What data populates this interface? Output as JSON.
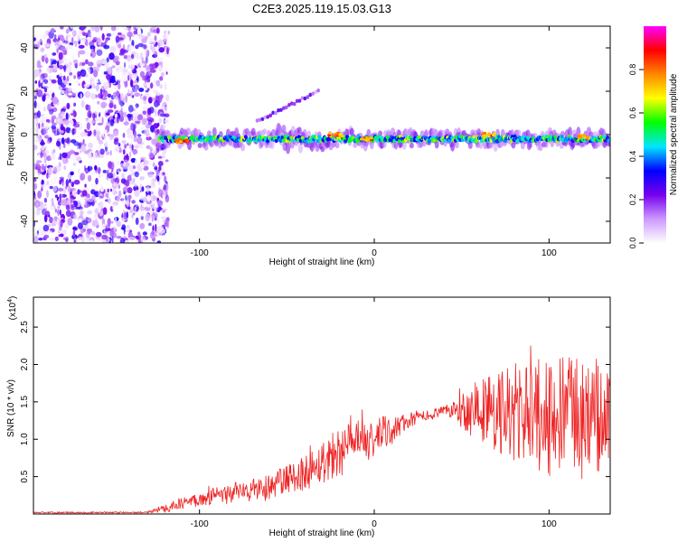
{
  "title": "C2E3.2025.119.15.03.G13",
  "chart_data": [
    {
      "type": "heatmap",
      "name": "spectrogram",
      "xlabel": "Height of straight line (km)",
      "ylabel": "Frequency (Hz)",
      "xlim": [
        -195,
        135
      ],
      "ylim": [
        -50,
        50
      ],
      "xticks": [
        -100,
        0,
        100
      ],
      "yticks": [
        -40,
        -20,
        0,
        20,
        40
      ],
      "colorbar": {
        "label": "Normalized spectral amplitude",
        "range": [
          0.0,
          1.0
        ],
        "ticks": [
          0.0,
          0.2,
          0.4,
          0.6,
          0.8
        ],
        "tick_labels": [
          "0.0",
          "0.2",
          "0.4",
          "0.6",
          "0.8"
        ],
        "colormap": [
          "#ffffff",
          "#cc99ff",
          "#7700ee",
          "#0000ff",
          "#00e5ff",
          "#00ff00",
          "#ffff00",
          "#ff8800",
          "#ff0000",
          "#ff00ff"
        ]
      },
      "noise_region_x": [
        -195,
        -122
      ],
      "band_center_hz": -2,
      "band_start_x": -125,
      "features": [
        {
          "name": "ascending streak",
          "x": [
            -67,
            -32
          ],
          "y": [
            6,
            20
          ]
        },
        {
          "name": "peak clusters",
          "x": [
            -110,
            -22,
            -4,
            65,
            120
          ],
          "y": [
            -3,
            0,
            -2,
            0,
            -1
          ]
        }
      ]
    },
    {
      "type": "line",
      "name": "snr",
      "xlabel": "Height of straight line (km)",
      "ylabel": "SNR (10 * v/v)",
      "scale_label": "(x10",
      "scale_exp": "4",
      "scale_close": ")",
      "xlim": [
        -195,
        135
      ],
      "ylim": [
        0,
        2.9
      ],
      "xticks": [
        -100,
        0,
        100
      ],
      "yticks": [
        0.5,
        1.0,
        1.5,
        2.0,
        2.5
      ],
      "ytick_labels": [
        "0.5",
        "1.0",
        "1.5",
        "2.0",
        "2.5"
      ],
      "color": "#ee2222",
      "envelope": {
        "x": [
          -195,
          -130,
          -120,
          -100,
          -80,
          -60,
          -40,
          -20,
          0,
          20,
          40,
          60,
          80,
          100,
          120,
          135
        ],
        "mean": [
          0.02,
          0.02,
          0.08,
          0.2,
          0.28,
          0.36,
          0.55,
          0.85,
          1.0,
          1.25,
          1.38,
          1.4,
          1.35,
          1.3,
          1.3,
          1.25
        ],
        "amp": [
          0.01,
          0.01,
          0.06,
          0.1,
          0.14,
          0.18,
          0.24,
          0.35,
          0.3,
          0.1,
          0.06,
          0.45,
          0.7,
          0.8,
          0.85,
          0.8
        ]
      }
    }
  ]
}
